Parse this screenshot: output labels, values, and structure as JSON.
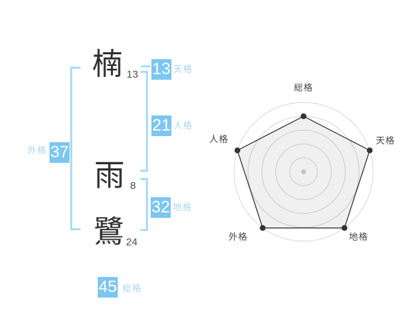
{
  "name": {
    "chars": [
      {
        "char": "楠",
        "strokes": "13"
      },
      {
        "char": "雨",
        "strokes": "8"
      },
      {
        "char": "鷺",
        "strokes": "24"
      }
    ]
  },
  "badges": [
    {
      "id": "tenkaku",
      "value": "13",
      "label": "天格"
    },
    {
      "id": "jinkaku",
      "value": "21",
      "label": "人格"
    },
    {
      "id": "chikaku",
      "value": "32",
      "label": "地格"
    },
    {
      "id": "gaikaku",
      "value": "37",
      "label": "外格"
    },
    {
      "id": "soukaku",
      "value": "45",
      "label": "総格"
    }
  ],
  "colors": {
    "badge_bg": "#7cc6f0",
    "badge_text": "#ffffff",
    "badge_label_text": "#a8d7f3",
    "bracket": "#abdbf6",
    "kanji_text": "#2f2f2f",
    "stroke_count_text": "#4d4d4d",
    "chart_ring": "#d6d6d6",
    "chart_polygon_stroke": "#333333",
    "chart_polygon_fill": "#f1f1f1",
    "chart_axis_label": "#444444",
    "chart_center_dot": "#c2c2c2"
  },
  "chart_data": {
    "type": "radar",
    "axes": [
      "総格",
      "天格",
      "地格",
      "外格",
      "人格"
    ],
    "values": [
      4,
      5,
      5,
      5,
      5
    ],
    "max": 5,
    "rings": 5,
    "grid": "circular",
    "legend": "none",
    "start_axis": "top, clockwise"
  }
}
